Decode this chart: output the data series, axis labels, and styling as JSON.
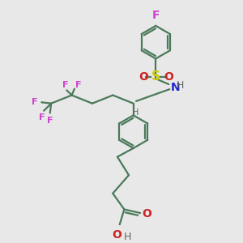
{
  "bg_color": "#e8e8e8",
  "bond_color": "#4a7a5a",
  "F_color": "#cc44cc",
  "N_color": "#2222cc",
  "O_color": "#cc2222",
  "S_color": "#cccc00",
  "H_color": "#666666",
  "line_width": 1.6,
  "font_size": 9,
  "fig_w": 3.0,
  "fig_h": 3.0,
  "dpi": 100,
  "xlim": [
    0,
    10
  ],
  "ylim": [
    0,
    10
  ]
}
